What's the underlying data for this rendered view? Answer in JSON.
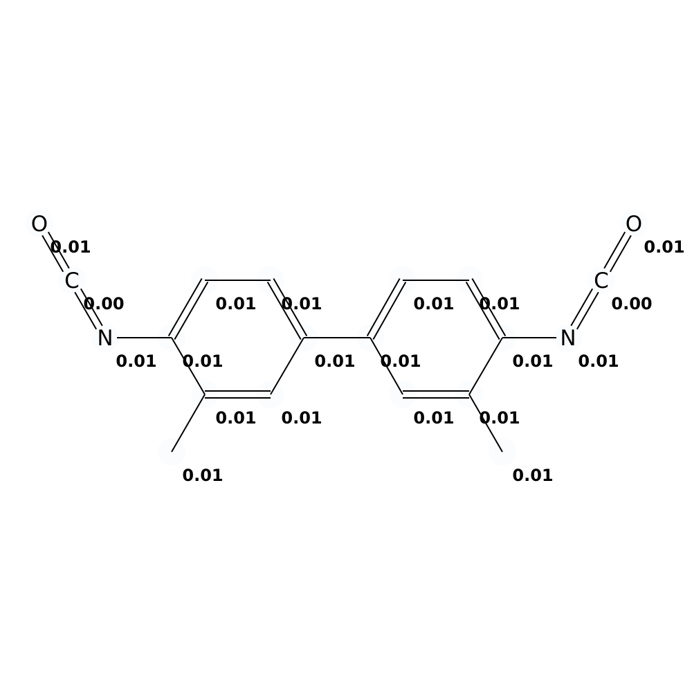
{
  "atoms": [
    {
      "id": "O1",
      "symbol": "O",
      "charge": "0.01"
    },
    {
      "id": "C1",
      "symbol": "C",
      "charge": "0.00"
    },
    {
      "id": "N1",
      "symbol": "N",
      "charge": "0.01"
    },
    {
      "id": "a1",
      "symbol": "",
      "charge": "0.01"
    },
    {
      "id": "a2",
      "symbol": "",
      "charge": "0.01"
    },
    {
      "id": "a3",
      "symbol": "",
      "charge": "0.01"
    },
    {
      "id": "a4",
      "symbol": "",
      "charge": "0.01"
    },
    {
      "id": "a5",
      "symbol": "",
      "charge": "0.01"
    },
    {
      "id": "a6",
      "symbol": "",
      "charge": "0.01"
    },
    {
      "id": "m1",
      "symbol": "",
      "charge": "0.01"
    },
    {
      "id": "b1",
      "symbol": "",
      "charge": "0.01"
    },
    {
      "id": "b2",
      "symbol": "",
      "charge": "0.01"
    },
    {
      "id": "b3",
      "symbol": "",
      "charge": "0.01"
    },
    {
      "id": "b4",
      "symbol": "",
      "charge": "0.01"
    },
    {
      "id": "b5",
      "symbol": "",
      "charge": "0.01"
    },
    {
      "id": "b6",
      "symbol": "",
      "charge": "0.01"
    },
    {
      "id": "m2",
      "symbol": "",
      "charge": "0.01"
    },
    {
      "id": "N2",
      "symbol": "N",
      "charge": "0.01"
    },
    {
      "id": "C2",
      "symbol": "C",
      "charge": "0.00"
    },
    {
      "id": "O2",
      "symbol": "O",
      "charge": "0.01"
    }
  ],
  "bonds": [
    {
      "from": "O1",
      "to": "C1",
      "order": 2
    },
    {
      "from": "C1",
      "to": "N1",
      "order": 2
    },
    {
      "from": "N1",
      "to": "a1",
      "order": 1
    },
    {
      "from": "a1",
      "to": "a2",
      "order": 2
    },
    {
      "from": "a2",
      "to": "a3",
      "order": 1
    },
    {
      "from": "a3",
      "to": "a4",
      "order": 2
    },
    {
      "from": "a4",
      "to": "a5",
      "order": 1
    },
    {
      "from": "a5",
      "to": "a6",
      "order": 2
    },
    {
      "from": "a6",
      "to": "a1",
      "order": 1
    },
    {
      "from": "a6",
      "to": "m1",
      "order": 1
    },
    {
      "from": "a4",
      "to": "b1",
      "order": 1
    },
    {
      "from": "b1",
      "to": "b2",
      "order": 2
    },
    {
      "from": "b2",
      "to": "b3",
      "order": 1
    },
    {
      "from": "b3",
      "to": "b4",
      "order": 2
    },
    {
      "from": "b4",
      "to": "b5",
      "order": 1
    },
    {
      "from": "b5",
      "to": "b6",
      "order": 2
    },
    {
      "from": "b6",
      "to": "b1",
      "order": 1
    },
    {
      "from": "b5",
      "to": "m2",
      "order": 1
    },
    {
      "from": "b4",
      "to": "N2",
      "order": 1
    },
    {
      "from": "N2",
      "to": "C2",
      "order": 2
    },
    {
      "from": "C2",
      "to": "O2",
      "order": 2
    }
  ]
}
